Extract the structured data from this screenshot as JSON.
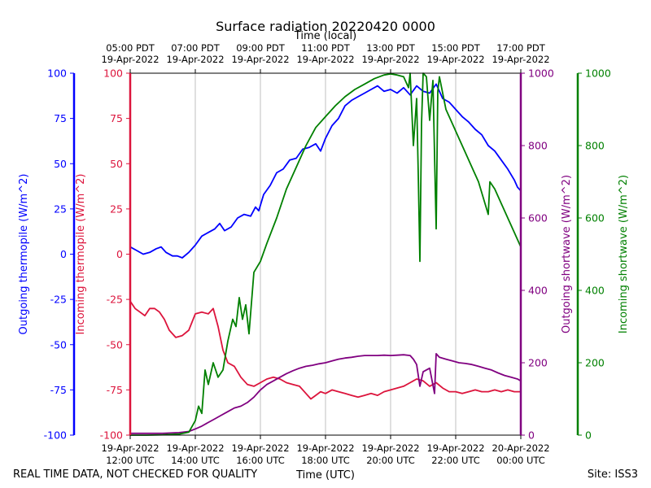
{
  "chart_data": {
    "type": "line",
    "title": "Surface radiation 20220420 0000",
    "top_axis_label": "Time (local)",
    "xlabel": "Time (UTC)",
    "footer_left": "REAL TIME DATA, NOT CHECKED FOR QUALITY",
    "footer_right": "Site: ISS3",
    "x_range_hours_utc": [
      12,
      24
    ],
    "bottom_ticks": [
      {
        "hour": 12,
        "date": "19-Apr-2022",
        "time": "12:00 UTC"
      },
      {
        "hour": 14,
        "date": "19-Apr-2022",
        "time": "14:00 UTC"
      },
      {
        "hour": 16,
        "date": "19-Apr-2022",
        "time": "16:00 UTC"
      },
      {
        "hour": 18,
        "date": "19-Apr-2022",
        "time": "18:00 UTC"
      },
      {
        "hour": 20,
        "date": "19-Apr-2022",
        "time": "20:00 UTC"
      },
      {
        "hour": 22,
        "date": "19-Apr-2022",
        "time": "22:00 UTC"
      },
      {
        "hour": 24,
        "date": "20-Apr-2022",
        "time": "00:00 UTC"
      }
    ],
    "top_ticks": [
      {
        "hour": 12,
        "time": "05:00 PDT",
        "date": "19-Apr-2022"
      },
      {
        "hour": 14,
        "time": "07:00 PDT",
        "date": "19-Apr-2022"
      },
      {
        "hour": 16,
        "time": "09:00 PDT",
        "date": "19-Apr-2022"
      },
      {
        "hour": 18,
        "time": "11:00 PDT",
        "date": "19-Apr-2022"
      },
      {
        "hour": 20,
        "time": "13:00 PDT",
        "date": "19-Apr-2022"
      },
      {
        "hour": 22,
        "time": "15:00 PDT",
        "date": "19-Apr-2022"
      },
      {
        "hour": 24,
        "time": "17:00 PDT",
        "date": "19-Apr-2022"
      }
    ],
    "grid": "vertical",
    "axes": [
      {
        "id": "out_tp",
        "label": "Outgoing thermopile (W/m^2)",
        "side": "left",
        "range": [
          -100,
          100
        ],
        "ticks": [
          -100,
          -75,
          -50,
          -25,
          0,
          25,
          50,
          75,
          100
        ],
        "color": "#0000ff"
      },
      {
        "id": "in_tp",
        "label": "Incoming thermopile (W/m^2)",
        "side": "left",
        "range": [
          -100,
          100
        ],
        "ticks": [
          -100,
          -75,
          -50,
          -25,
          0,
          25,
          50,
          75,
          100
        ],
        "color": "#dc143c"
      },
      {
        "id": "out_sw",
        "label": "Outgoing shortwave (W/m^2)",
        "side": "right",
        "range": [
          0,
          1000
        ],
        "ticks": [
          0,
          200,
          400,
          600,
          800,
          1000
        ],
        "color": "#800080"
      },
      {
        "id": "in_sw",
        "label": "Incoming shortwave (W/m^2)",
        "side": "right",
        "range": [
          0,
          1000
        ],
        "ticks": [
          0,
          200,
          400,
          600,
          800,
          1000
        ],
        "color": "#008000"
      }
    ],
    "series": [
      {
        "axis": "out_tp",
        "color": "#0000ff",
        "points": [
          [
            12.0,
            4
          ],
          [
            12.2,
            2
          ],
          [
            12.4,
            0
          ],
          [
            12.6,
            1
          ],
          [
            12.8,
            3
          ],
          [
            12.95,
            4
          ],
          [
            13.1,
            1
          ],
          [
            13.3,
            -1
          ],
          [
            13.45,
            -1
          ],
          [
            13.6,
            -2
          ],
          [
            13.8,
            1
          ],
          [
            14.0,
            5
          ],
          [
            14.2,
            10
          ],
          [
            14.4,
            12
          ],
          [
            14.6,
            14
          ],
          [
            14.75,
            17
          ],
          [
            14.9,
            13
          ],
          [
            15.1,
            15
          ],
          [
            15.3,
            20
          ],
          [
            15.5,
            22
          ],
          [
            15.7,
            21
          ],
          [
            15.85,
            26
          ],
          [
            15.95,
            24
          ],
          [
            16.1,
            33
          ],
          [
            16.3,
            38
          ],
          [
            16.5,
            45
          ],
          [
            16.7,
            47
          ],
          [
            16.9,
            52
          ],
          [
            17.1,
            53
          ],
          [
            17.3,
            58
          ],
          [
            17.5,
            59
          ],
          [
            17.7,
            61
          ],
          [
            17.85,
            57
          ],
          [
            18.0,
            64
          ],
          [
            18.2,
            71
          ],
          [
            18.4,
            75
          ],
          [
            18.6,
            82
          ],
          [
            18.8,
            85
          ],
          [
            19.0,
            87
          ],
          [
            19.2,
            89
          ],
          [
            19.4,
            91
          ],
          [
            19.6,
            93
          ],
          [
            19.8,
            90
          ],
          [
            20.0,
            91
          ],
          [
            20.2,
            89
          ],
          [
            20.4,
            92
          ],
          [
            20.6,
            88
          ],
          [
            20.8,
            93
          ],
          [
            21.0,
            90
          ],
          [
            21.2,
            89
          ],
          [
            21.4,
            94
          ],
          [
            21.6,
            86
          ],
          [
            21.8,
            84
          ],
          [
            22.0,
            80
          ],
          [
            22.2,
            76
          ],
          [
            22.4,
            73
          ],
          [
            22.6,
            69
          ],
          [
            22.8,
            66
          ],
          [
            23.0,
            60
          ],
          [
            23.2,
            57
          ],
          [
            23.4,
            52
          ],
          [
            23.6,
            47
          ],
          [
            23.8,
            41
          ],
          [
            23.9,
            37
          ],
          [
            24.0,
            35
          ]
        ]
      },
      {
        "axis": "in_tp",
        "color": "#dc143c",
        "points": [
          [
            12.0,
            -26
          ],
          [
            12.15,
            -30
          ],
          [
            12.3,
            -32
          ],
          [
            12.45,
            -34
          ],
          [
            12.6,
            -30
          ],
          [
            12.75,
            -30
          ],
          [
            12.9,
            -32
          ],
          [
            13.05,
            -36
          ],
          [
            13.2,
            -42
          ],
          [
            13.4,
            -46
          ],
          [
            13.6,
            -45
          ],
          [
            13.8,
            -42
          ],
          [
            14.0,
            -33
          ],
          [
            14.2,
            -32
          ],
          [
            14.4,
            -33
          ],
          [
            14.55,
            -30
          ],
          [
            14.7,
            -40
          ],
          [
            14.85,
            -53
          ],
          [
            15.0,
            -60
          ],
          [
            15.2,
            -62
          ],
          [
            15.4,
            -68
          ],
          [
            15.6,
            -72
          ],
          [
            15.8,
            -73
          ],
          [
            16.0,
            -71
          ],
          [
            16.2,
            -69
          ],
          [
            16.4,
            -68
          ],
          [
            16.6,
            -69
          ],
          [
            16.8,
            -71
          ],
          [
            17.0,
            -72
          ],
          [
            17.2,
            -73
          ],
          [
            17.4,
            -77
          ],
          [
            17.55,
            -80
          ],
          [
            17.7,
            -78
          ],
          [
            17.85,
            -76
          ],
          [
            18.0,
            -77
          ],
          [
            18.2,
            -75
          ],
          [
            18.4,
            -76
          ],
          [
            18.6,
            -77
          ],
          [
            18.8,
            -78
          ],
          [
            19.0,
            -79
          ],
          [
            19.2,
            -78
          ],
          [
            19.4,
            -77
          ],
          [
            19.6,
            -78
          ],
          [
            19.8,
            -76
          ],
          [
            20.0,
            -75
          ],
          [
            20.2,
            -74
          ],
          [
            20.4,
            -73
          ],
          [
            20.6,
            -71
          ],
          [
            20.8,
            -69
          ],
          [
            21.0,
            -70
          ],
          [
            21.2,
            -73
          ],
          [
            21.4,
            -71
          ],
          [
            21.6,
            -74
          ],
          [
            21.8,
            -76
          ],
          [
            22.0,
            -76
          ],
          [
            22.2,
            -77
          ],
          [
            22.4,
            -76
          ],
          [
            22.6,
            -75
          ],
          [
            22.8,
            -76
          ],
          [
            23.0,
            -76
          ],
          [
            23.2,
            -75
          ],
          [
            23.4,
            -76
          ],
          [
            23.6,
            -75
          ],
          [
            23.8,
            -76
          ],
          [
            24.0,
            -76
          ]
        ]
      },
      {
        "axis": "out_sw",
        "color": "#800080",
        "points": [
          [
            12.0,
            5
          ],
          [
            12.5,
            5
          ],
          [
            13.0,
            5
          ],
          [
            13.5,
            7
          ],
          [
            13.8,
            10
          ],
          [
            14.0,
            17
          ],
          [
            14.2,
            25
          ],
          [
            14.4,
            35
          ],
          [
            14.6,
            45
          ],
          [
            14.8,
            55
          ],
          [
            15.0,
            65
          ],
          [
            15.2,
            75
          ],
          [
            15.4,
            80
          ],
          [
            15.6,
            90
          ],
          [
            15.8,
            105
          ],
          [
            16.0,
            125
          ],
          [
            16.2,
            140
          ],
          [
            16.4,
            150
          ],
          [
            16.6,
            160
          ],
          [
            16.8,
            170
          ],
          [
            17.0,
            178
          ],
          [
            17.2,
            185
          ],
          [
            17.4,
            190
          ],
          [
            17.6,
            193
          ],
          [
            17.8,
            197
          ],
          [
            18.0,
            200
          ],
          [
            18.2,
            205
          ],
          [
            18.4,
            210
          ],
          [
            18.6,
            213
          ],
          [
            18.8,
            215
          ],
          [
            19.0,
            218
          ],
          [
            19.2,
            220
          ],
          [
            19.4,
            220
          ],
          [
            19.6,
            220
          ],
          [
            19.8,
            221
          ],
          [
            20.0,
            220
          ],
          [
            20.2,
            221
          ],
          [
            20.4,
            222
          ],
          [
            20.6,
            220
          ],
          [
            20.7,
            210
          ],
          [
            20.8,
            195
          ],
          [
            20.9,
            135
          ],
          [
            21.0,
            175
          ],
          [
            21.2,
            185
          ],
          [
            21.35,
            115
          ],
          [
            21.4,
            225
          ],
          [
            21.5,
            215
          ],
          [
            21.7,
            210
          ],
          [
            21.9,
            205
          ],
          [
            22.1,
            200
          ],
          [
            22.3,
            198
          ],
          [
            22.5,
            195
          ],
          [
            22.7,
            190
          ],
          [
            22.9,
            185
          ],
          [
            23.1,
            180
          ],
          [
            23.3,
            172
          ],
          [
            23.5,
            165
          ],
          [
            23.7,
            160
          ],
          [
            23.9,
            155
          ],
          [
            24.0,
            150
          ]
        ]
      },
      {
        "axis": "in_sw",
        "color": "#008000",
        "points": [
          [
            12.0,
            0
          ],
          [
            12.5,
            0
          ],
          [
            13.0,
            1
          ],
          [
            13.5,
            3
          ],
          [
            13.8,
            8
          ],
          [
            14.0,
            40
          ],
          [
            14.1,
            80
          ],
          [
            14.2,
            60
          ],
          [
            14.3,
            180
          ],
          [
            14.4,
            140
          ],
          [
            14.55,
            200
          ],
          [
            14.7,
            160
          ],
          [
            14.85,
            180
          ],
          [
            15.0,
            260
          ],
          [
            15.15,
            320
          ],
          [
            15.25,
            300
          ],
          [
            15.35,
            380
          ],
          [
            15.45,
            320
          ],
          [
            15.55,
            360
          ],
          [
            15.65,
            280
          ],
          [
            15.8,
            450
          ],
          [
            16.0,
            480
          ],
          [
            16.2,
            530
          ],
          [
            16.5,
            600
          ],
          [
            16.8,
            680
          ],
          [
            17.1,
            740
          ],
          [
            17.4,
            800
          ],
          [
            17.7,
            850
          ],
          [
            18.0,
            880
          ],
          [
            18.3,
            910
          ],
          [
            18.6,
            935
          ],
          [
            18.9,
            955
          ],
          [
            19.2,
            970
          ],
          [
            19.5,
            985
          ],
          [
            19.8,
            995
          ],
          [
            20.0,
            998
          ],
          [
            20.2,
            995
          ],
          [
            20.4,
            990
          ],
          [
            20.55,
            960
          ],
          [
            20.6,
            1000
          ],
          [
            20.7,
            800
          ],
          [
            20.8,
            930
          ],
          [
            20.85,
            720
          ],
          [
            20.9,
            480
          ],
          [
            20.95,
            860
          ],
          [
            21.0,
            1000
          ],
          [
            21.1,
            990
          ],
          [
            21.2,
            870
          ],
          [
            21.3,
            980
          ],
          [
            21.4,
            570
          ],
          [
            21.45,
            950
          ],
          [
            21.5,
            990
          ],
          [
            21.7,
            900
          ],
          [
            21.9,
            860
          ],
          [
            22.1,
            820
          ],
          [
            22.3,
            780
          ],
          [
            22.5,
            740
          ],
          [
            22.7,
            700
          ],
          [
            22.9,
            640
          ],
          [
            23.0,
            610
          ],
          [
            23.05,
            700
          ],
          [
            23.2,
            680
          ],
          [
            23.4,
            640
          ],
          [
            23.6,
            600
          ],
          [
            23.8,
            560
          ],
          [
            24.0,
            520
          ]
        ]
      }
    ]
  }
}
